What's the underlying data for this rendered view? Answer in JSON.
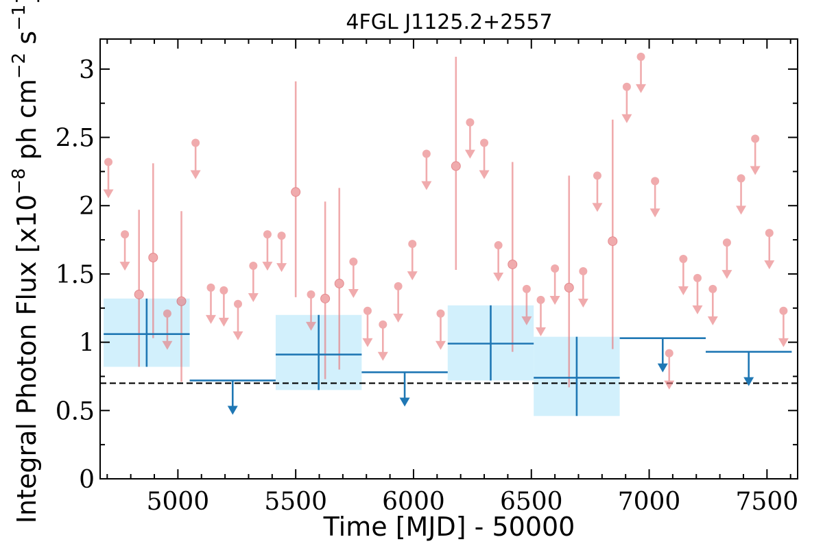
{
  "chart_data": {
    "type": "scatter",
    "title": "4FGL J1125.2+2557",
    "xlabel": "Time [MJD] - 50000",
    "ylabel": "Integral Photon Flux [x10",
    "ylabel_exp1": "−8",
    "ylabel_mid": " ph cm",
    "ylabel_exp2": "−2",
    "ylabel_mid2": " s",
    "ylabel_exp3": "−1",
    "ylabel_end": "]",
    "xlim": [
      4670,
      7630
    ],
    "ylim": [
      0,
      3.22
    ],
    "xticks": [
      5000,
      5500,
      6000,
      6500,
      7000,
      7500
    ],
    "yticks": [
      0,
      0.5,
      1,
      1.5,
      2,
      2.5,
      3
    ],
    "ytick_labels": [
      "0",
      "0.5",
      "1",
      "1.5",
      "2",
      "2.5",
      "3"
    ],
    "reference_line": {
      "y": 0.7,
      "style": "dashed",
      "color": "#000000"
    },
    "colors": {
      "fine": "#e8787c",
      "coarse": "#1f77b4",
      "coarse_fill": "#cdeefc"
    },
    "series": [
      {
        "role": "fine-binned",
        "upper_limits": [
          {
            "x": 4705,
            "y": 2.32
          },
          {
            "x": 4775,
            "y": 1.79
          },
          {
            "x": 4955,
            "y": 1.21
          },
          {
            "x": 5075,
            "y": 2.46
          },
          {
            "x": 5140,
            "y": 1.4
          },
          {
            "x": 5195,
            "y": 1.38
          },
          {
            "x": 5255,
            "y": 1.28
          },
          {
            "x": 5320,
            "y": 1.56
          },
          {
            "x": 5380,
            "y": 1.79
          },
          {
            "x": 5440,
            "y": 1.78
          },
          {
            "x": 5565,
            "y": 1.35
          },
          {
            "x": 5745,
            "y": 1.59
          },
          {
            "x": 5805,
            "y": 1.23
          },
          {
            "x": 5870,
            "y": 1.13
          },
          {
            "x": 5935,
            "y": 1.41
          },
          {
            "x": 5995,
            "y": 1.72
          },
          {
            "x": 6055,
            "y": 2.38
          },
          {
            "x": 6115,
            "y": 1.21
          },
          {
            "x": 6240,
            "y": 2.61
          },
          {
            "x": 6300,
            "y": 2.46
          },
          {
            "x": 6360,
            "y": 1.71
          },
          {
            "x": 6480,
            "y": 1.39
          },
          {
            "x": 6540,
            "y": 1.31
          },
          {
            "x": 6600,
            "y": 1.54
          },
          {
            "x": 6720,
            "y": 1.52
          },
          {
            "x": 6780,
            "y": 2.22
          },
          {
            "x": 6905,
            "y": 2.87
          },
          {
            "x": 6965,
            "y": 3.09
          },
          {
            "x": 7025,
            "y": 2.18
          },
          {
            "x": 7085,
            "y": 0.92
          },
          {
            "x": 7145,
            "y": 1.61
          },
          {
            "x": 7205,
            "y": 1.47
          },
          {
            "x": 7270,
            "y": 1.39
          },
          {
            "x": 7330,
            "y": 1.73
          },
          {
            "x": 7390,
            "y": 2.2
          },
          {
            "x": 7450,
            "y": 2.49
          },
          {
            "x": 7510,
            "y": 1.8
          },
          {
            "x": 7570,
            "y": 1.23
          }
        ],
        "detections": [
          {
            "x": 4835,
            "y": 1.35,
            "lo": 0.82,
            "hi": 1.97
          },
          {
            "x": 4895,
            "y": 1.62,
            "lo": 1.03,
            "hi": 2.31
          },
          {
            "x": 5015,
            "y": 1.3,
            "lo": 0.71,
            "hi": 1.96
          },
          {
            "x": 5500,
            "y": 2.1,
            "lo": 1.33,
            "hi": 2.91
          },
          {
            "x": 5625,
            "y": 1.32,
            "lo": 0.73,
            "hi": 2.03
          },
          {
            "x": 5685,
            "y": 1.43,
            "lo": 0.8,
            "hi": 2.13
          },
          {
            "x": 6180,
            "y": 2.29,
            "lo": 1.53,
            "hi": 3.09
          },
          {
            "x": 6420,
            "y": 1.57,
            "lo": 0.93,
            "hi": 2.32
          },
          {
            "x": 6660,
            "y": 1.4,
            "lo": 0.67,
            "hi": 2.22
          },
          {
            "x": 6845,
            "y": 1.74,
            "lo": 0.95,
            "hi": 2.63
          }
        ]
      },
      {
        "role": "coarse-binned",
        "detections": [
          {
            "x0": 4685,
            "x1": 5050,
            "y": 1.06,
            "lo": 0.82,
            "hi": 1.32
          },
          {
            "x0": 5415,
            "x1": 5780,
            "y": 0.91,
            "lo": 0.65,
            "hi": 1.2
          },
          {
            "x0": 6145,
            "x1": 6510,
            "y": 0.99,
            "lo": 0.72,
            "hi": 1.27
          },
          {
            "x0": 6510,
            "x1": 6875,
            "y": 0.74,
            "lo": 0.46,
            "hi": 1.04
          }
        ],
        "upper_limits": [
          {
            "x0": 5050,
            "x1": 5415,
            "y": 0.72
          },
          {
            "x0": 5780,
            "x1": 6145,
            "y": 0.78
          },
          {
            "x0": 6875,
            "x1": 7240,
            "y": 1.03
          },
          {
            "x0": 7240,
            "x1": 7605,
            "y": 0.93
          }
        ]
      }
    ]
  }
}
